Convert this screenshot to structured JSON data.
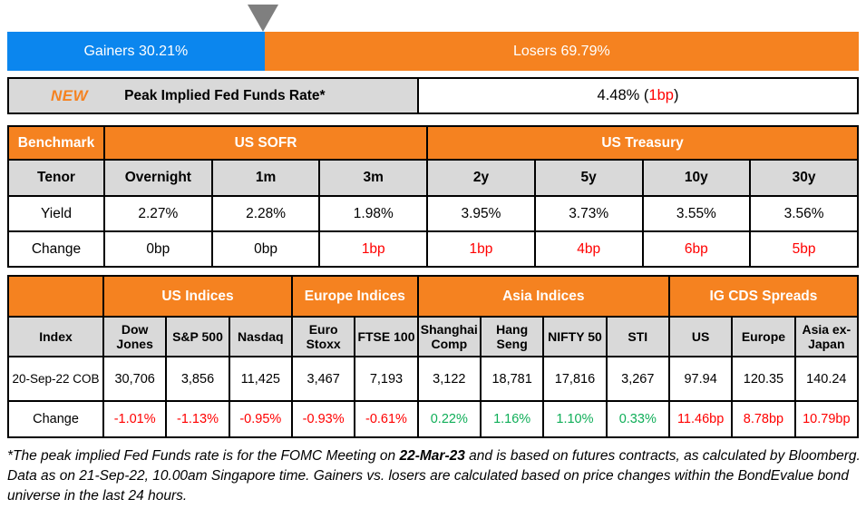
{
  "colors": {
    "gainers_blue": "#0B86EE",
    "losers_orange": "#F58220",
    "header_orange": "#F58220",
    "header_gray": "#D9D9D9",
    "negative_red": "#FF0000",
    "positive_green": "#0FAE58",
    "triangle_gray": "#7F7F7F"
  },
  "gainers_losers_bar": {
    "gainers_label": "Gainers 30.21%",
    "gainers_pct": 30.21,
    "losers_label": "Losers 69.79%",
    "losers_pct": 69.79
  },
  "peak_rate": {
    "badge": "NEW",
    "label": "Peak Implied Fed Funds Rate*",
    "value_before": "4.48% (",
    "change": "1bp",
    "value_after": ")"
  },
  "benchmark": {
    "corner_label": "Benchmark",
    "groups": [
      {
        "label": "US SOFR",
        "colspan": 3
      },
      {
        "label": "US Treasury",
        "colspan": 4
      }
    ],
    "row_labels": {
      "tenor": "Tenor",
      "yield": "Yield",
      "change": "Change"
    },
    "tenors": [
      "Overnight",
      "1m",
      "3m",
      "2y",
      "5y",
      "10y",
      "30y"
    ],
    "yields": [
      "2.27%",
      "2.28%",
      "1.98%",
      "3.95%",
      "3.73%",
      "3.55%",
      "3.56%"
    ],
    "changes": [
      "0bp",
      "0bp",
      "1bp",
      "1bp",
      "4bp",
      "6bp",
      "5bp"
    ],
    "change_tones": [
      "neutral",
      "neutral",
      "negative",
      "negative",
      "negative",
      "negative",
      "negative"
    ]
  },
  "indices": {
    "corner_label": "",
    "groups": [
      {
        "label": "US Indices",
        "colspan": 3
      },
      {
        "label": "Europe Indices",
        "colspan": 2
      },
      {
        "label": "Asia Indices",
        "colspan": 4
      },
      {
        "label": "IG CDS Spreads",
        "colspan": 3
      }
    ],
    "index_row_label": "Index",
    "columns": [
      "Dow Jones",
      "S&P 500",
      "Nasdaq",
      "Euro Stoxx",
      "FTSE 100",
      "Shanghai Comp",
      "Hang Seng",
      "NIFTY 50",
      "STI",
      "US",
      "Europe",
      "Asia ex-Japan"
    ],
    "date_row_label": "20-Sep-22 COB",
    "values": [
      "30,706",
      "3,856",
      "11,425",
      "3,467",
      "7,193",
      "3,122",
      "18,781",
      "17,816",
      "3,267",
      "97.94",
      "120.35",
      "140.24"
    ],
    "change_row_label": "Change",
    "changes": [
      "-1.01%",
      "-1.13%",
      "-0.95%",
      "-0.93%",
      "-0.61%",
      "0.22%",
      "1.16%",
      "1.10%",
      "0.33%",
      "11.46bp",
      "8.78bp",
      "10.79bp"
    ],
    "change_tones": [
      "negative",
      "negative",
      "negative",
      "negative",
      "negative",
      "positive",
      "positive",
      "positive",
      "positive",
      "negative",
      "negative",
      "negative"
    ]
  },
  "footnote": {
    "text_before": "*The peak implied Fed Funds rate is for the FOMC Meeting on ",
    "bold_date": "22-Mar-23",
    "text_after": " and is based on futures contracts, as calculated by Bloomberg. Data as on 21-Sep-22, 10.00am Singapore time. Gainers vs. losers are calculated based on price changes within the BondEvalue bond universe in the last 24 hours."
  },
  "chart_data": [
    {
      "type": "bar",
      "title": "Gainers vs Losers (% of BondEvalue bond universe, last 24 hours)",
      "categories": [
        "Gainers",
        "Losers"
      ],
      "values": [
        30.21,
        69.79
      ],
      "unit": "%",
      "layout": "horizontal-stacked-100pct",
      "colors": [
        "#0B86EE",
        "#F58220"
      ],
      "annotation": "gray triangle marker at the gainers/losers boundary (30.21%)"
    },
    {
      "type": "table",
      "title": "Peak Implied Fed Funds Rate*",
      "value_pct": 4.48,
      "change_bp": 1,
      "change_direction": "down-red"
    },
    {
      "type": "table",
      "title": "Benchmark yields",
      "column_groups": [
        "US SOFR (Overnight, 1m, 3m)",
        "US Treasury (2y, 5y, 10y, 30y)"
      ],
      "tenors": [
        "Overnight",
        "1m",
        "3m",
        "2y",
        "5y",
        "10y",
        "30y"
      ],
      "yield_pct": [
        2.27,
        2.28,
        1.98,
        3.95,
        3.73,
        3.55,
        3.56
      ],
      "change_bp": [
        0,
        0,
        1,
        1,
        4,
        6,
        5
      ],
      "change_color": [
        "black",
        "black",
        "red",
        "red",
        "red",
        "red",
        "red"
      ]
    },
    {
      "type": "table",
      "title": "Indices and IG CDS Spreads as of 20-Sep-22 COB",
      "column_groups": [
        "US Indices (3)",
        "Europe Indices (2)",
        "Asia Indices (4)",
        "IG CDS Spreads (3)"
      ],
      "columns": [
        "Dow Jones",
        "S&P 500",
        "Nasdaq",
        "Euro Stoxx",
        "FTSE 100",
        "Shanghai Comp",
        "Hang Seng",
        "NIFTY 50",
        "STI",
        "US",
        "Europe",
        "Asia ex-Japan"
      ],
      "values": [
        30706,
        3856,
        11425,
        3467,
        7193,
        3122,
        18781,
        17816,
        3267,
        97.94,
        120.35,
        140.24
      ],
      "changes": [
        "-1.01%",
        "-1.13%",
        "-0.95%",
        "-0.93%",
        "-0.61%",
        "0.22%",
        "1.16%",
        "1.10%",
        "0.33%",
        "11.46bp",
        "8.78bp",
        "10.79bp"
      ],
      "change_color": [
        "red",
        "red",
        "red",
        "red",
        "red",
        "green",
        "green",
        "green",
        "green",
        "red",
        "red",
        "red"
      ]
    }
  ]
}
